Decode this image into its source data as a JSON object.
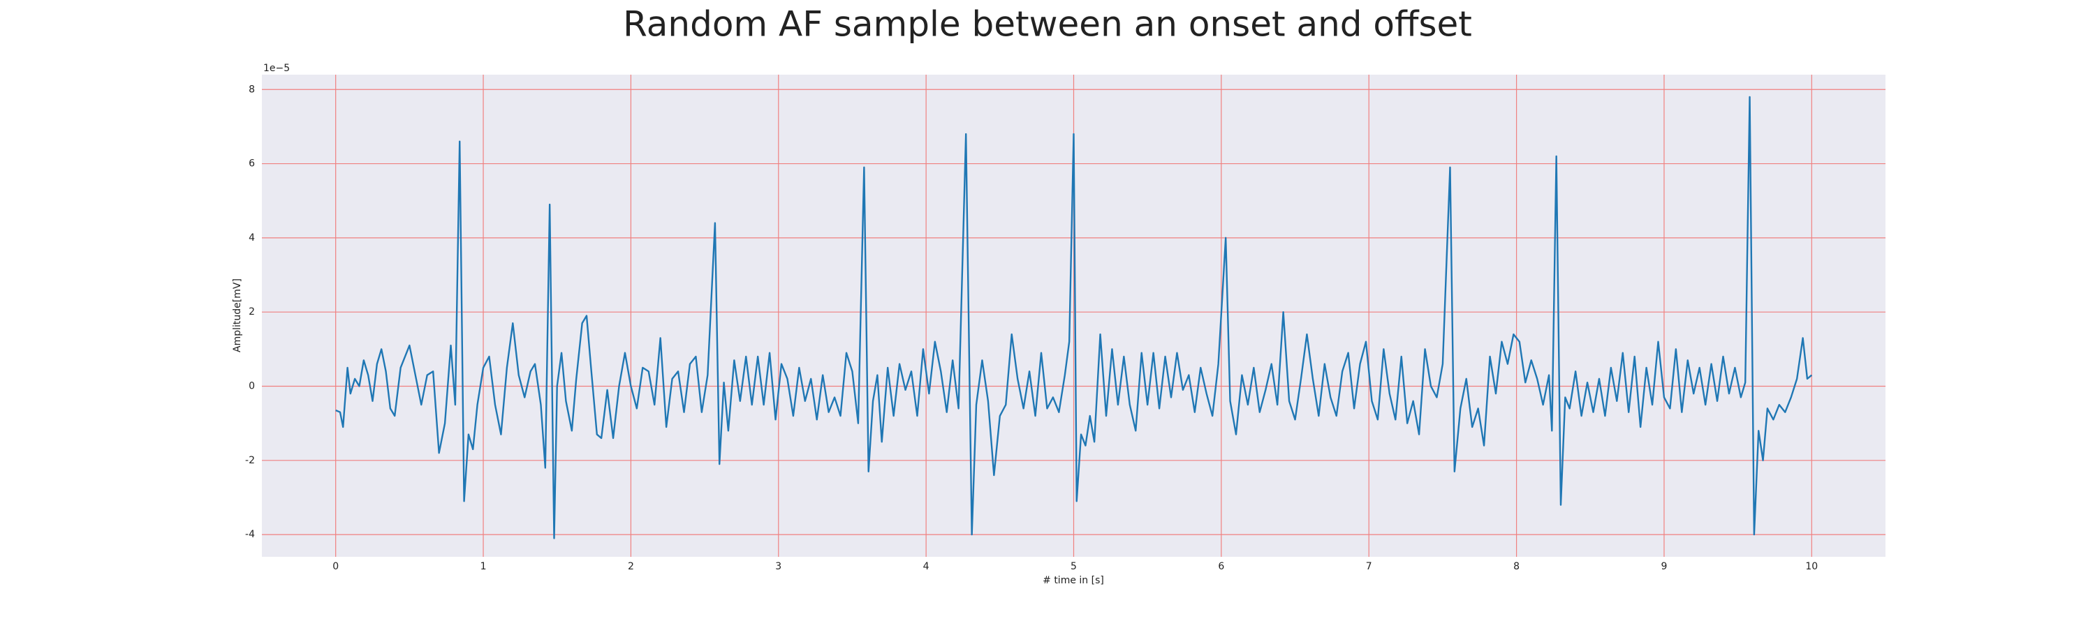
{
  "chart_data": {
    "type": "line",
    "title": "Random AF sample between an onset and offset",
    "xlabel": "# time in [s]",
    "ylabel": "Amplitude[mV]",
    "offset_text": "1e−5",
    "color": "#1f77b4",
    "grid": true,
    "grid_color": "#f08080",
    "background": "#eaeaf2",
    "xlim": [
      -0.5,
      10.5
    ],
    "ylim": [
      -4.6,
      8.4
    ],
    "xticks": [
      0,
      1,
      2,
      3,
      4,
      5,
      6,
      7,
      8,
      9,
      10
    ],
    "yticks": [
      -4,
      -2,
      0,
      2,
      4,
      6,
      8
    ],
    "x": [
      0,
      0.03,
      0.05,
      0.08,
      0.1,
      0.13,
      0.16,
      0.19,
      0.22,
      0.25,
      0.28,
      0.31,
      0.34,
      0.37,
      0.4,
      0.44,
      0.5,
      0.54,
      0.58,
      0.62,
      0.66,
      0.7,
      0.74,
      0.78,
      0.81,
      0.84,
      0.87,
      0.9,
      0.93,
      0.96,
      1.0,
      1.04,
      1.08,
      1.12,
      1.16,
      1.2,
      1.24,
      1.28,
      1.32,
      1.35,
      1.39,
      1.42,
      1.45,
      1.48,
      1.5,
      1.53,
      1.56,
      1.6,
      1.63,
      1.67,
      1.7,
      1.73,
      1.77,
      1.8,
      1.84,
      1.88,
      1.92,
      1.96,
      2.0,
      2.04,
      2.08,
      2.12,
      2.16,
      2.2,
      2.24,
      2.28,
      2.32,
      2.36,
      2.4,
      2.44,
      2.48,
      2.52,
      2.57,
      2.6,
      2.63,
      2.66,
      2.7,
      2.74,
      2.78,
      2.82,
      2.86,
      2.9,
      2.94,
      2.98,
      3.02,
      3.06,
      3.1,
      3.14,
      3.18,
      3.22,
      3.26,
      3.3,
      3.34,
      3.38,
      3.42,
      3.46,
      3.5,
      3.54,
      3.58,
      3.61,
      3.64,
      3.67,
      3.7,
      3.74,
      3.78,
      3.82,
      3.86,
      3.9,
      3.94,
      3.98,
      4.02,
      4.06,
      4.1,
      4.14,
      4.18,
      4.22,
      4.27,
      4.31,
      4.34,
      4.38,
      4.42,
      4.46,
      4.5,
      4.54,
      4.58,
      4.62,
      4.66,
      4.7,
      4.74,
      4.78,
      4.82,
      4.86,
      4.9,
      4.94,
      4.97,
      5.0,
      5.02,
      5.05,
      5.08,
      5.11,
      5.14,
      5.18,
      5.22,
      5.26,
      5.3,
      5.34,
      5.38,
      5.42,
      5.46,
      5.5,
      5.54,
      5.58,
      5.62,
      5.66,
      5.7,
      5.74,
      5.78,
      5.82,
      5.86,
      5.9,
      5.94,
      5.98,
      6.03,
      6.06,
      6.1,
      6.14,
      6.18,
      6.22,
      6.26,
      6.3,
      6.34,
      6.38,
      6.42,
      6.46,
      6.5,
      6.54,
      6.58,
      6.62,
      6.66,
      6.7,
      6.74,
      6.78,
      6.82,
      6.86,
      6.9,
      6.94,
      6.98,
      7.02,
      7.06,
      7.1,
      7.14,
      7.18,
      7.22,
      7.26,
      7.3,
      7.34,
      7.38,
      7.42,
      7.46,
      7.5,
      7.55,
      7.58,
      7.62,
      7.66,
      7.7,
      7.74,
      7.78,
      7.82,
      7.86,
      7.9,
      7.94,
      7.98,
      8.02,
      8.06,
      8.1,
      8.14,
      8.18,
      8.22,
      8.24,
      8.27,
      8.3,
      8.33,
      8.36,
      8.4,
      8.44,
      8.48,
      8.52,
      8.56,
      8.6,
      8.64,
      8.68,
      8.72,
      8.76,
      8.8,
      8.84,
      8.88,
      8.92,
      8.96,
      9.0,
      9.04,
      9.08,
      9.12,
      9.16,
      9.2,
      9.24,
      9.28,
      9.32,
      9.36,
      9.4,
      9.44,
      9.48,
      9.52,
      9.55,
      9.58,
      9.61,
      9.64,
      9.67,
      9.7,
      9.74,
      9.78,
      9.82,
      9.86,
      9.9,
      9.94,
      9.97,
      10.0
    ],
    "values": [
      -0.65,
      -0.7,
      -1.1,
      0.5,
      -0.2,
      0.2,
      0.0,
      0.7,
      0.3,
      -0.4,
      0.6,
      1.0,
      0.4,
      -0.6,
      -0.8,
      0.5,
      1.1,
      0.3,
      -0.5,
      0.3,
      0.4,
      -1.8,
      -1.0,
      1.1,
      -0.5,
      6.6,
      -3.1,
      -1.3,
      -1.7,
      -0.5,
      0.5,
      0.8,
      -0.5,
      -1.3,
      0.5,
      1.7,
      0.3,
      -0.3,
      0.4,
      0.6,
      -0.5,
      -2.2,
      4.9,
      -4.1,
      0.0,
      0.9,
      -0.4,
      -1.2,
      0.2,
      1.7,
      1.9,
      0.5,
      -1.3,
      -1.4,
      -0.1,
      -1.4,
      0.0,
      0.9,
      0.0,
      -0.6,
      0.5,
      0.4,
      -0.5,
      1.3,
      -1.1,
      0.2,
      0.4,
      -0.7,
      0.6,
      0.8,
      -0.7,
      0.3,
      4.4,
      -2.1,
      0.1,
      -1.2,
      0.7,
      -0.4,
      0.8,
      -0.5,
      0.8,
      -0.5,
      0.9,
      -0.9,
      0.6,
      0.2,
      -0.8,
      0.5,
      -0.4,
      0.2,
      -0.9,
      0.3,
      -0.7,
      -0.3,
      -0.8,
      0.9,
      0.4,
      -1.0,
      5.9,
      -2.3,
      -0.4,
      0.3,
      -1.5,
      0.5,
      -0.8,
      0.6,
      -0.1,
      0.4,
      -0.8,
      1.0,
      -0.2,
      1.2,
      0.4,
      -0.7,
      0.7,
      -0.6,
      6.8,
      -4.0,
      -0.5,
      0.7,
      -0.4,
      -2.4,
      -0.8,
      -0.5,
      1.4,
      0.2,
      -0.6,
      0.4,
      -0.8,
      0.9,
      -0.6,
      -0.3,
      -0.7,
      0.3,
      1.2,
      6.8,
      -3.1,
      -1.3,
      -1.6,
      -0.8,
      -1.5,
      1.4,
      -0.8,
      1.0,
      -0.5,
      0.8,
      -0.5,
      -1.2,
      0.9,
      -0.5,
      0.9,
      -0.6,
      0.8,
      -0.3,
      0.9,
      -0.1,
      0.3,
      -0.7,
      0.5,
      -0.2,
      -0.8,
      0.6,
      4.0,
      -0.4,
      -1.3,
      0.3,
      -0.5,
      0.5,
      -0.7,
      -0.1,
      0.6,
      -0.5,
      2.0,
      -0.4,
      -0.9,
      0.2,
      1.4,
      0.2,
      -0.8,
      0.6,
      -0.3,
      -0.8,
      0.4,
      0.9,
      -0.6,
      0.6,
      1.2,
      -0.4,
      -0.9,
      1.0,
      -0.2,
      -0.9,
      0.8,
      -1.0,
      -0.4,
      -1.3,
      1.0,
      0.0,
      -0.3,
      0.6,
      5.9,
      -2.3,
      -0.6,
      0.2,
      -1.1,
      -0.6,
      -1.6,
      0.8,
      -0.2,
      1.2,
      0.6,
      1.4,
      1.2,
      0.1,
      0.7,
      0.2,
      -0.5,
      0.3,
      -1.2,
      6.2,
      -3.2,
      -0.3,
      -0.6,
      0.4,
      -0.8,
      0.1,
      -0.7,
      0.2,
      -0.8,
      0.5,
      -0.4,
      0.9,
      -0.7,
      0.8,
      -1.1,
      0.5,
      -0.5,
      1.2,
      -0.3,
      -0.6,
      1.0,
      -0.7,
      0.7,
      -0.2,
      0.5,
      -0.5,
      0.6,
      -0.4,
      0.8,
      -0.2,
      0.5,
      -0.3,
      0.1,
      7.8,
      -4.0,
      -1.2,
      -2.0,
      -0.6,
      -0.9,
      -0.5,
      -0.7,
      -0.3,
      0.2,
      1.3,
      0.2,
      0.3
    ]
  }
}
